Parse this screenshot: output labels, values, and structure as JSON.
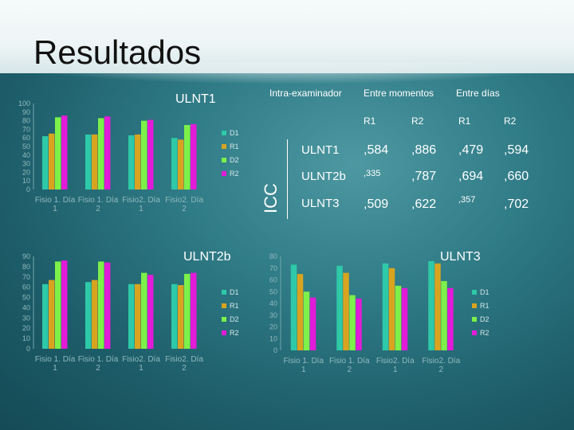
{
  "title": "Resultados",
  "colors": {
    "D1": "#2ec9a8",
    "R1": "#d8a420",
    "D2": "#7df04a",
    "R2": "#e11bd8"
  },
  "table": {
    "col_headers": [
      "Intra-examinador",
      "Entre momentos",
      "Entre días"
    ],
    "sub_headers": [
      "R1",
      "R2",
      "R1",
      "R2"
    ],
    "side_label": "ICC",
    "rows": [
      {
        "label": "ULNT1",
        "values": [
          ",584",
          ",886",
          ",479",
          ",594"
        ]
      },
      {
        "label": "ULNT2b",
        "values": [
          ",335",
          ",787",
          ",694",
          ",660"
        ]
      },
      {
        "label": "ULNT3",
        "values": [
          ",509",
          ",622",
          ",357",
          ",702"
        ]
      }
    ]
  },
  "chart_data": [
    {
      "type": "bar",
      "title": "ULNT1",
      "categories": [
        "Fisio 1. Día 1",
        "Fisio 1. Día 2",
        "Fisio2. Día 1",
        "Fisio2. Día 2"
      ],
      "series": [
        {
          "name": "D1",
          "values": [
            62,
            64,
            63,
            60
          ]
        },
        {
          "name": "R1",
          "values": [
            65,
            64,
            64,
            58
          ]
        },
        {
          "name": "D2",
          "values": [
            84,
            83,
            80,
            75
          ]
        },
        {
          "name": "R2",
          "values": [
            86,
            85,
            81,
            76
          ]
        }
      ],
      "ylim": [
        0,
        100
      ],
      "yticks": [
        "0",
        "10",
        "20",
        "30",
        "40",
        "50",
        "60",
        "70",
        "80",
        "90",
        "100"
      ],
      "legend": [
        "D1",
        "R1",
        "D2",
        "R2"
      ]
    },
    {
      "type": "bar",
      "title": "ULNT2b",
      "categories": [
        "Fisio 1. Día 1",
        "Fisio 1. Día 2",
        "Fisio2. Día 1",
        "Fisio2. Día 2"
      ],
      "series": [
        {
          "name": "D1",
          "values": [
            63,
            65,
            63,
            63
          ]
        },
        {
          "name": "R1",
          "values": [
            67,
            67,
            63,
            62
          ]
        },
        {
          "name": "D2",
          "values": [
            85,
            85,
            74,
            73
          ]
        },
        {
          "name": "R2",
          "values": [
            86,
            84,
            72,
            74
          ]
        }
      ],
      "ylim": [
        0,
        90
      ],
      "yticks": [
        "0",
        "10",
        "20",
        "30",
        "40",
        "50",
        "60",
        "70",
        "80",
        "90"
      ],
      "legend": [
        "D1",
        "R1",
        "D2",
        "R2"
      ]
    },
    {
      "type": "bar",
      "title": "ULNT3",
      "categories": [
        "Fisio 1. Día 1",
        "Fisio 1. Día 2",
        "Fisio2. Día 1",
        "Fisio2. Día 2"
      ],
      "series": [
        {
          "name": "D1",
          "values": [
            73,
            72,
            74,
            76
          ]
        },
        {
          "name": "R1",
          "values": [
            65,
            66,
            70,
            74
          ]
        },
        {
          "name": "D2",
          "values": [
            50,
            47,
            55,
            59
          ]
        },
        {
          "name": "R2",
          "values": [
            45,
            44,
            53,
            53
          ]
        }
      ],
      "ylim": [
        0,
        80
      ],
      "yticks": [
        "0",
        "10",
        "20",
        "30",
        "40",
        "50",
        "60",
        "70",
        "80"
      ],
      "legend": [
        "D1",
        "R1",
        "D2",
        "R2"
      ]
    }
  ]
}
